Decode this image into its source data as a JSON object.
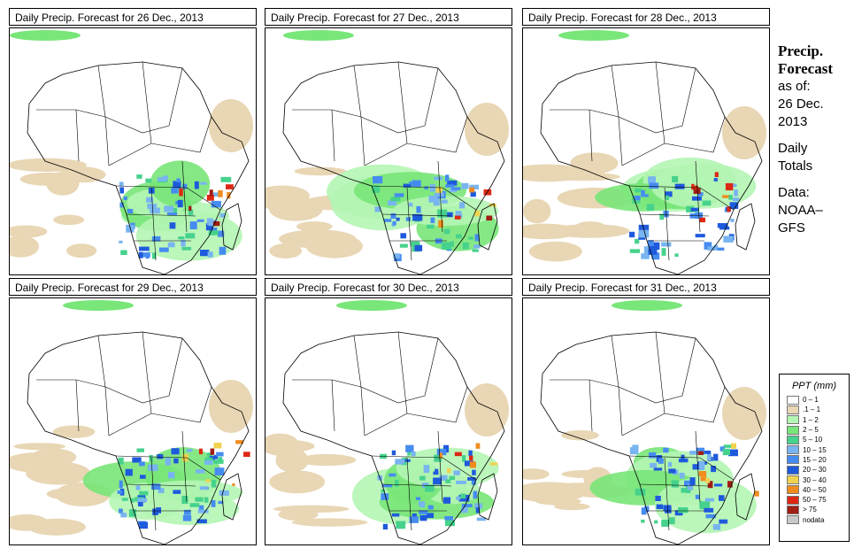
{
  "panels": [
    {
      "title": "Daily Precip. Forecast for  26 Dec., 2013"
    },
    {
      "title": "Daily Precip. Forecast for  27 Dec., 2013"
    },
    {
      "title": "Daily Precip. Forecast for  28 Dec., 2013"
    },
    {
      "title": "Daily Precip. Forecast for  29 Dec., 2013"
    },
    {
      "title": "Daily Precip. Forecast for  30 Dec., 2013"
    },
    {
      "title": "Daily Precip. Forecast for  31 Dec., 2013"
    }
  ],
  "sidebar": {
    "heading1": "Precip.",
    "heading2": "Forecast",
    "as_of": "as of:",
    "date1": "26 Dec.",
    "date2": "2013",
    "daily": "Daily",
    "totals": "Totals",
    "data_label": "Data:",
    "source1": "NOAA–",
    "source2": "GFS"
  },
  "legend": {
    "title": "PPT (mm)",
    "items": [
      {
        "label": "0 – 1",
        "color": "#ffffff"
      },
      {
        "label": ".1 – 1",
        "color": "#e8d6b4"
      },
      {
        "label": "1 – 2",
        "color": "#b4f5b4"
      },
      {
        "label": "2 – 5",
        "color": "#78e678"
      },
      {
        "label": "5 – 10",
        "color": "#46d28c"
      },
      {
        "label": "10 – 15",
        "color": "#78b4f0"
      },
      {
        "label": "15 – 20",
        "color": "#468cf0"
      },
      {
        "label": "20 – 30",
        "color": "#1e5adc"
      },
      {
        "label": "30 – 40",
        "color": "#f0d250"
      },
      {
        "label": "40 – 50",
        "color": "#f08c1e"
      },
      {
        "label": "50 – 75",
        "color": "#dc2814"
      },
      {
        "label": "> 75",
        "color": "#a01e14"
      },
      {
        "label": "nodata",
        "color": "#c8c8c8"
      }
    ]
  }
}
